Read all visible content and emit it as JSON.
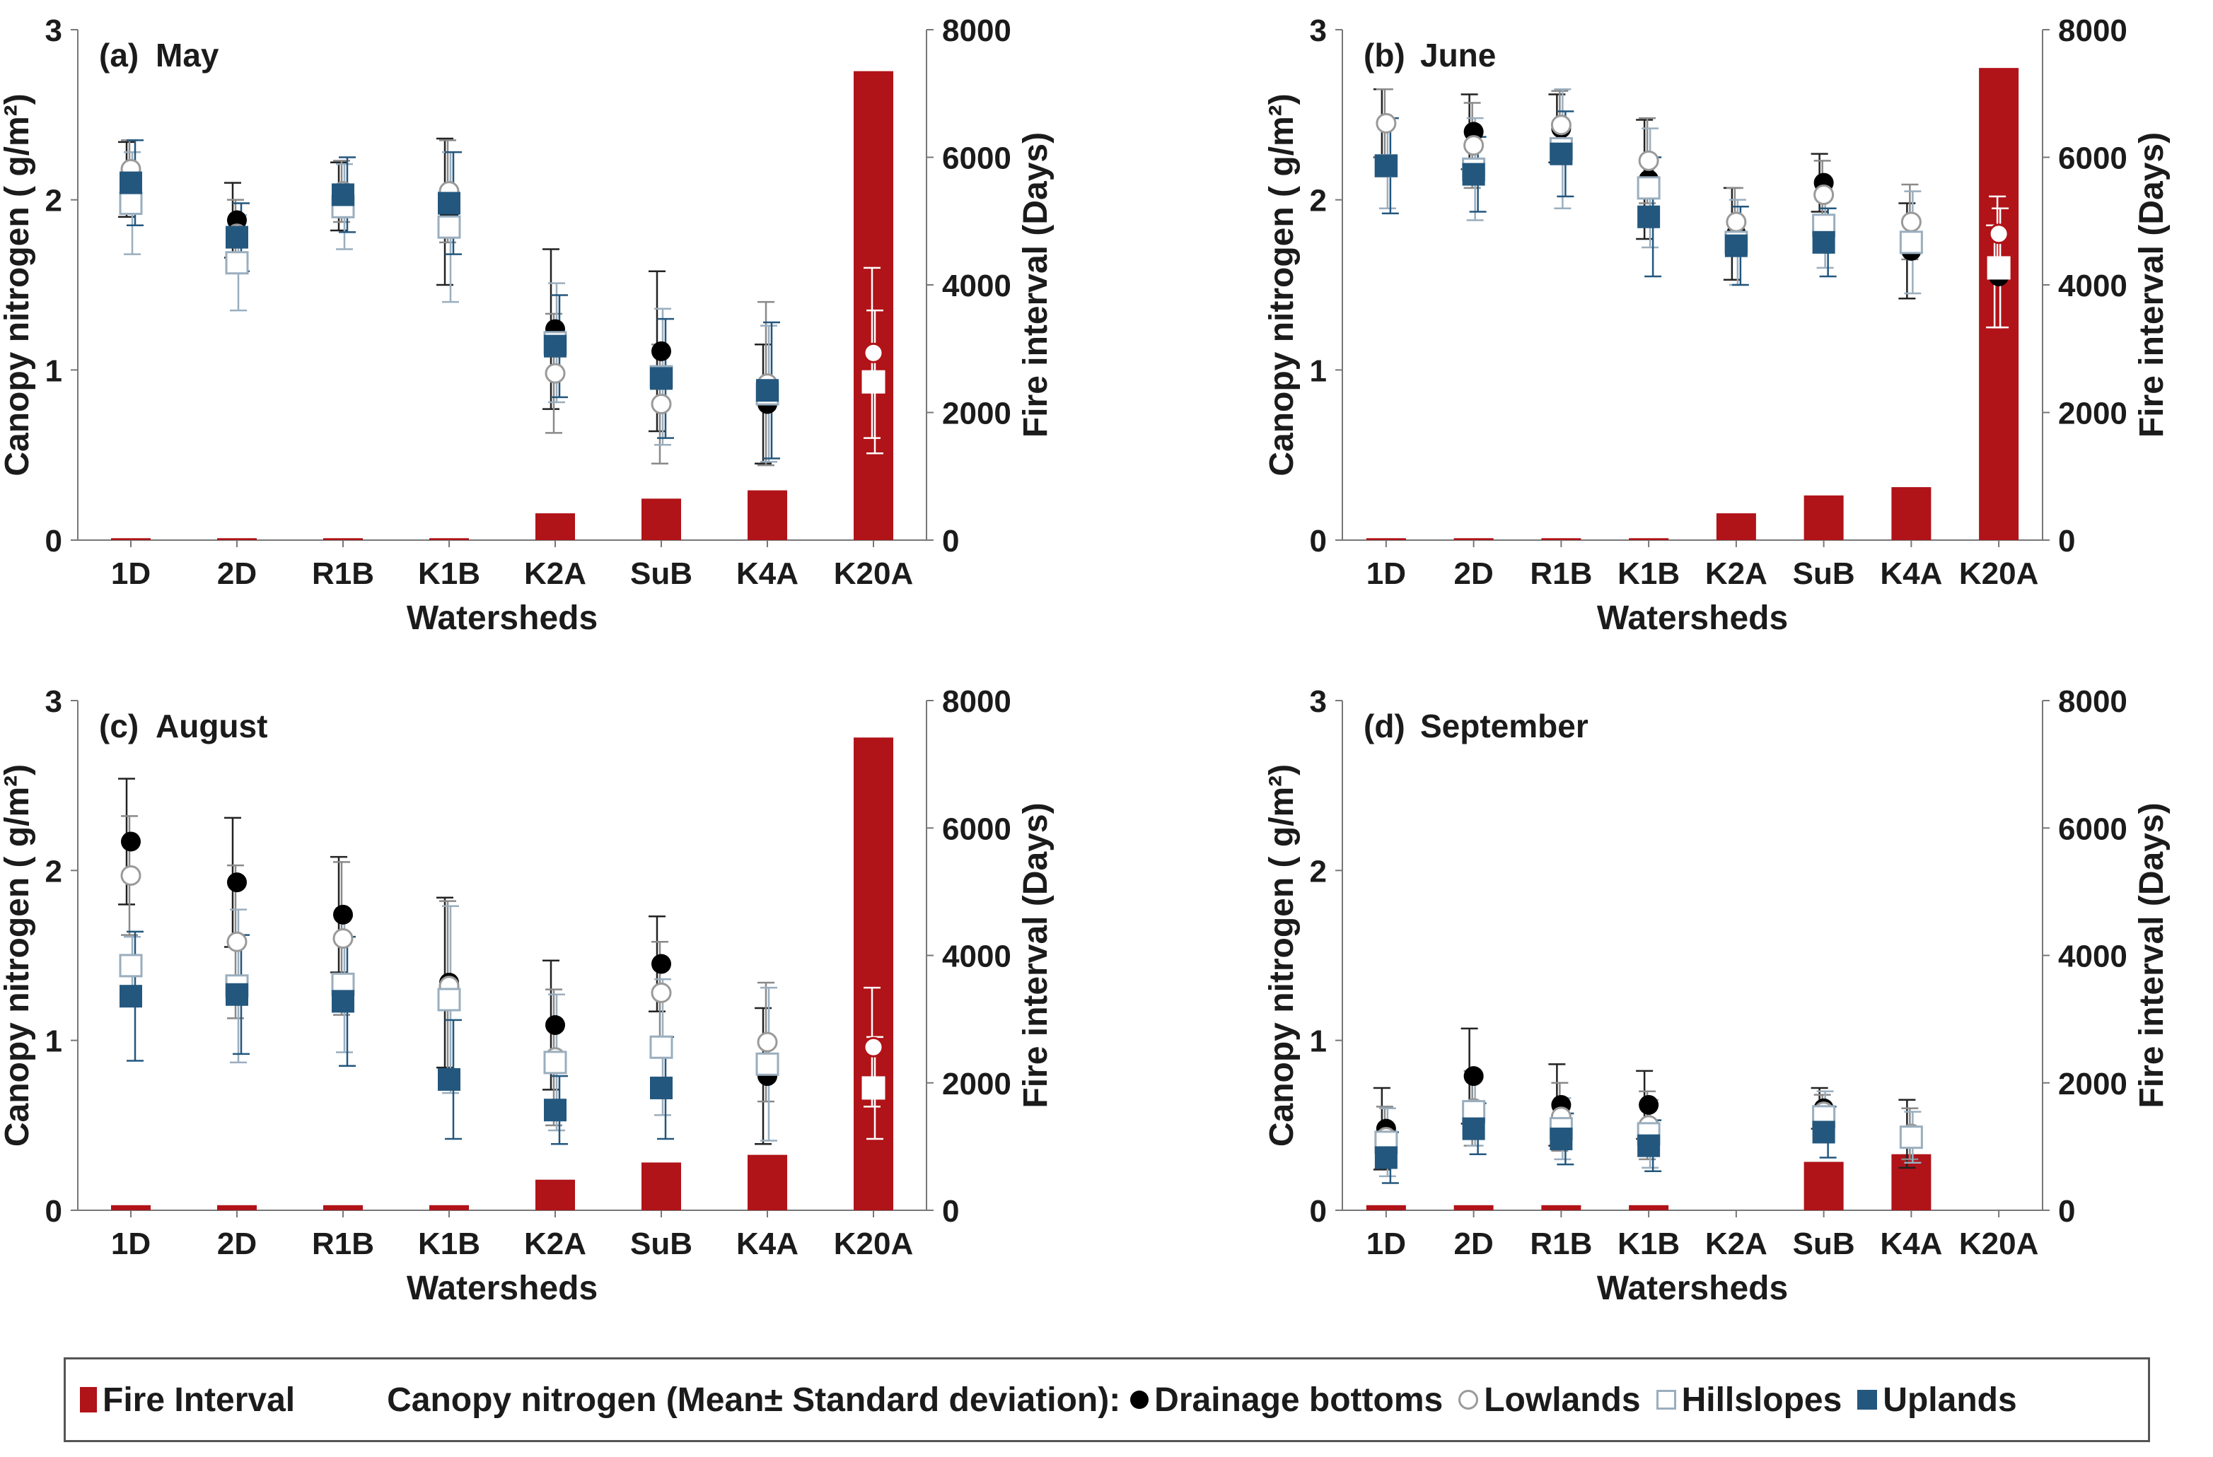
{
  "colors": {
    "fire_bar": "#b01318",
    "drainage": "#000000",
    "lowlands": "#9a9a9a",
    "hillslopes": "#9aaebe",
    "uplands": "#23577e",
    "k20a_markers": "#ffffff"
  },
  "chart_data": [
    {
      "type": "bar+scatter",
      "panel_label": "(a)",
      "title": "May",
      "xlabel": "Watersheds",
      "ylabel_left": "Canopy nitrogen ( g/m²)",
      "ylabel_right": "Fire interval (Days)",
      "ylim_left": [
        0,
        3
      ],
      "ylim_right": [
        0,
        8000
      ],
      "yticks_left": [
        "0",
        "1",
        "2",
        "3"
      ],
      "yticks_right": [
        "0",
        "2000",
        "4000",
        "6000",
        "8000"
      ],
      "categories": [
        "1D",
        "2D",
        "R1B",
        "K1B",
        "K2A",
        "SuB",
        "K4A",
        "K20A"
      ],
      "fire_interval": [
        30,
        30,
        30,
        30,
        420,
        650,
        780,
        7350
      ],
      "series": [
        {
          "name": "Drainage bottoms",
          "mean": [
            2.12,
            1.88,
            2.02,
            1.93,
            1.24,
            1.11,
            0.8,
            null
          ],
          "sd": [
            0.22,
            0.22,
            0.2,
            0.43,
            0.47,
            0.47,
            0.35,
            null
          ]
        },
        {
          "name": "Lowlands",
          "mean": [
            2.18,
            1.8,
            2.05,
            2.05,
            0.98,
            0.8,
            0.92,
            1.1
          ],
          "sd": [
            0.17,
            0.2,
            0.18,
            0.3,
            0.35,
            0.35,
            0.48,
            0.5
          ]
        },
        {
          "name": "Hillslopes",
          "mean": [
            1.98,
            1.63,
            1.96,
            1.84,
            1.16,
            0.96,
            0.86,
            0.93
          ],
          "sd": [
            0.3,
            0.28,
            0.25,
            0.44,
            0.35,
            0.4,
            0.4,
            0.42
          ]
        },
        {
          "name": "Uplands",
          "mean": [
            2.1,
            1.78,
            2.03,
            1.98,
            1.14,
            0.95,
            0.88,
            null
          ],
          "sd": [
            0.25,
            0.2,
            0.22,
            0.3,
            0.3,
            0.35,
            0.4,
            null
          ]
        }
      ]
    },
    {
      "type": "bar+scatter",
      "panel_label": "(b)",
      "title": "June",
      "xlabel": "Watersheds",
      "ylabel_left": "Canopy nitrogen ( g/m²)",
      "ylabel_right": "Fire interval (Days)",
      "ylim_left": [
        0,
        3
      ],
      "ylim_right": [
        0,
        8000
      ],
      "yticks_left": [
        "0",
        "1",
        "2",
        "3"
      ],
      "yticks_right": [
        "0",
        "2000",
        "4000",
        "6000",
        "8000"
      ],
      "categories": [
        "1D",
        "2D",
        "R1B",
        "K1B",
        "K2A",
        "SuB",
        "K4A",
        "K20A"
      ],
      "fire_interval": [
        30,
        30,
        30,
        30,
        420,
        700,
        830,
        7400
      ],
      "series": [
        {
          "name": "Drainage bottoms",
          "mean": [
            2.45,
            2.4,
            2.42,
            2.12,
            1.8,
            2.1,
            1.7,
            1.55
          ],
          "sd": [
            0.2,
            0.22,
            0.2,
            0.35,
            0.27,
            0.17,
            0.28,
            0.3
          ]
        },
        {
          "name": "Lowlands",
          "mean": [
            2.45,
            2.32,
            2.44,
            2.23,
            1.87,
            2.03,
            1.87,
            1.8
          ],
          "sd": [
            0.2,
            0.25,
            0.2,
            0.25,
            0.2,
            0.2,
            0.22,
            0.22
          ]
        },
        {
          "name": "Hillslopes",
          "mean": [
            2.2,
            2.18,
            2.3,
            2.07,
            1.75,
            1.85,
            1.75,
            1.6
          ],
          "sd": [
            0.25,
            0.3,
            0.35,
            0.35,
            0.25,
            0.25,
            0.3,
            0.35
          ]
        },
        {
          "name": "Uplands",
          "mean": [
            2.2,
            2.15,
            2.27,
            1.9,
            1.73,
            1.75,
            null,
            null
          ],
          "sd": [
            0.28,
            0.22,
            0.25,
            0.35,
            0.23,
            0.2,
            null,
            null
          ]
        }
      ]
    },
    {
      "type": "bar+scatter",
      "panel_label": "(c)",
      "title": "August",
      "xlabel": "Watersheds",
      "ylabel_left": "Canopy nitrogen ( g/m²)",
      "ylabel_right": "Fire interval (Days)",
      "ylim_left": [
        0,
        3
      ],
      "ylim_right": [
        0,
        8000
      ],
      "yticks_left": [
        "0",
        "1",
        "2",
        "3"
      ],
      "yticks_right": [
        "0",
        "2000",
        "4000",
        "6000",
        "8000"
      ],
      "categories": [
        "1D",
        "2D",
        "R1B",
        "K1B",
        "K2A",
        "SuB",
        "K4A",
        "K20A"
      ],
      "fire_interval": [
        80,
        80,
        80,
        80,
        480,
        750,
        870,
        7420
      ],
      "series": [
        {
          "name": "Drainage bottoms",
          "mean": [
            2.17,
            1.93,
            1.74,
            1.34,
            1.09,
            1.45,
            0.79,
            null
          ],
          "sd": [
            0.37,
            0.38,
            0.34,
            0.5,
            0.38,
            0.28,
            0.4,
            null
          ]
        },
        {
          "name": "Lowlands",
          "mean": [
            1.97,
            1.58,
            1.6,
            1.32,
            0.9,
            1.28,
            0.99,
            0.96
          ],
          "sd": [
            0.35,
            0.45,
            0.45,
            0.5,
            0.4,
            0.3,
            0.35,
            0.35
          ]
        },
        {
          "name": "Hillslopes",
          "mean": [
            1.44,
            1.32,
            1.33,
            1.24,
            0.87,
            0.96,
            0.86,
            0.72
          ],
          "sd": [
            0.17,
            0.45,
            0.4,
            0.55,
            0.4,
            0.4,
            0.45,
            0.3
          ]
        },
        {
          "name": "Uplands",
          "mean": [
            1.26,
            1.27,
            1.23,
            0.77,
            0.59,
            0.72,
            null,
            null
          ],
          "sd": [
            0.38,
            0.35,
            0.38,
            0.35,
            0.2,
            0.3,
            null,
            null
          ]
        }
      ]
    },
    {
      "type": "bar+scatter",
      "panel_label": "(d)",
      "title": "September",
      "xlabel": "Watersheds",
      "ylabel_left": "Canopy nitrogen ( g/m²)",
      "ylabel_right": "Fire interval (Days)",
      "ylim_left": [
        0,
        3
      ],
      "ylim_right": [
        0,
        8000
      ],
      "yticks_left": [
        "0",
        "1",
        "2",
        "3"
      ],
      "yticks_right": [
        "0",
        "2000",
        "4000",
        "6000",
        "8000"
      ],
      "categories": [
        "1D",
        "2D",
        "R1B",
        "K1B",
        "K2A",
        "SuB",
        "K4A",
        "K20A"
      ],
      "fire_interval": [
        80,
        80,
        80,
        80,
        null,
        760,
        880,
        null
      ],
      "series": [
        {
          "name": "Drainage bottoms",
          "mean": [
            0.48,
            0.79,
            0.62,
            0.62,
            null,
            0.6,
            0.45,
            null
          ],
          "sd": [
            0.24,
            0.28,
            0.24,
            0.2,
            null,
            0.12,
            0.2,
            null
          ]
        },
        {
          "name": "Lowlands",
          "mean": [
            0.43,
            0.6,
            0.55,
            0.5,
            null,
            0.58,
            0.45,
            null
          ],
          "sd": [
            0.18,
            0.22,
            0.2,
            0.2,
            null,
            0.1,
            0.15,
            null
          ]
        },
        {
          "name": "Hillslopes",
          "mean": [
            0.4,
            0.58,
            0.48,
            0.45,
            null,
            0.55,
            0.43,
            null
          ],
          "sd": [
            0.2,
            0.2,
            0.18,
            0.2,
            null,
            0.15,
            0.15,
            null
          ]
        },
        {
          "name": "Uplands",
          "mean": [
            0.31,
            0.48,
            0.42,
            0.38,
            null,
            0.46,
            null,
            null
          ],
          "sd": [
            0.15,
            0.15,
            0.15,
            0.15,
            null,
            0.15,
            null,
            null
          ]
        }
      ]
    }
  ],
  "legend": {
    "fire_interval": "Fire Interval",
    "canopy_prefix": "Canopy nitrogen (Mean± Standard deviation):",
    "drainage": "Drainage bottoms",
    "lowlands": "Lowlands",
    "hillslopes": "Hillslopes",
    "uplands": "Uplands"
  }
}
